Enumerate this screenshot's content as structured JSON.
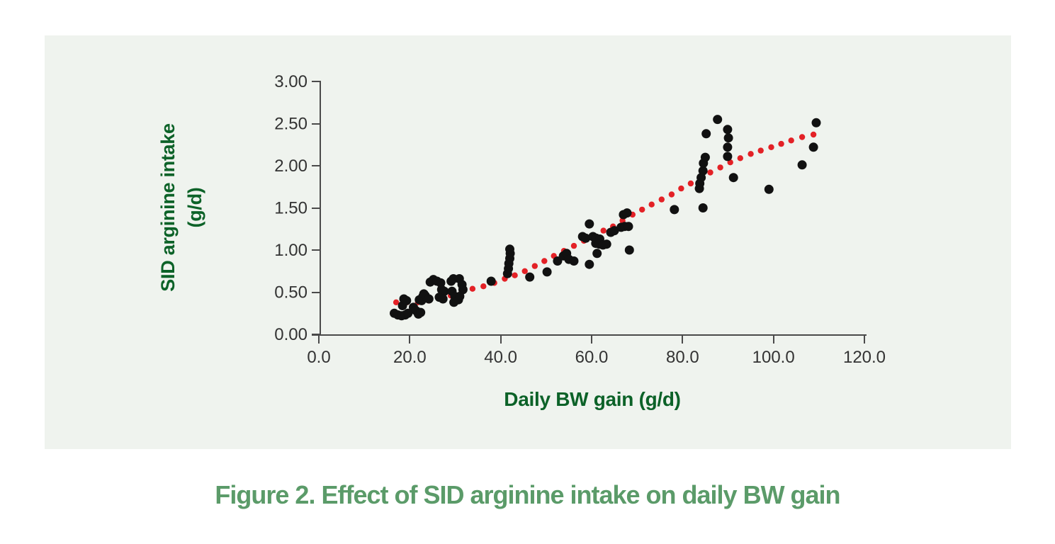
{
  "caption": "Figure 2. Effect of SID arginine intake on daily BW gain",
  "colors": {
    "panel_background": "#eff3ee",
    "axis_title_green": "#0c6228",
    "caption_green": "#5b9b69",
    "point_black": "#111111",
    "trend_red": "#e32126",
    "axis_line": "#4a4a4a",
    "tick_text": "#333333"
  },
  "chart_data": {
    "type": "scatter",
    "title": "",
    "xlabel": "Daily BW gain (g/d)",
    "ylabel": "SID arginine intake (g/d)",
    "ylabel_lines": [
      "SID arginine intake",
      "(g/d)"
    ],
    "xlim": [
      0,
      120
    ],
    "ylim": [
      0,
      3
    ],
    "x_tick_values": [
      0,
      20,
      40,
      60,
      80,
      100,
      120
    ],
    "x_tick_labels": [
      "0.0",
      "20.0",
      "40.0",
      "60.0",
      "80.0",
      "100.0",
      "120.0"
    ],
    "y_tick_values": [
      0,
      0.5,
      1.0,
      1.5,
      2.0,
      2.5,
      3.0
    ],
    "y_tick_labels": [
      "0.00",
      "0.50",
      "1.00",
      "1.50",
      "2.00",
      "2.50",
      "3.00"
    ],
    "grid": false,
    "legend": "none",
    "series": [
      {
        "name": "observations",
        "style": "scatter",
        "color": "#111111",
        "marker_radius_px": 6.5,
        "points": [
          [
            16.6,
            0.25
          ],
          [
            17.4,
            0.23
          ],
          [
            18.2,
            0.22
          ],
          [
            19.0,
            0.23
          ],
          [
            19.6,
            0.25
          ],
          [
            18.4,
            0.34
          ],
          [
            18.7,
            0.42
          ],
          [
            19.3,
            0.4
          ],
          [
            20.8,
            0.32
          ],
          [
            21.4,
            0.28
          ],
          [
            21.9,
            0.24
          ],
          [
            22.4,
            0.26
          ],
          [
            22.1,
            0.41
          ],
          [
            22.6,
            0.4
          ],
          [
            22.9,
            0.45
          ],
          [
            23.4,
            0.46
          ],
          [
            23.1,
            0.48
          ],
          [
            24.2,
            0.42
          ],
          [
            24.5,
            0.62
          ],
          [
            25.2,
            0.65
          ],
          [
            26.0,
            0.63
          ],
          [
            26.8,
            0.61
          ],
          [
            27.0,
            0.53
          ],
          [
            27.6,
            0.51
          ],
          [
            26.5,
            0.44
          ],
          [
            27.3,
            0.42
          ],
          [
            29.1,
            0.63
          ],
          [
            29.6,
            0.66
          ],
          [
            30.9,
            0.66
          ],
          [
            31.5,
            0.59
          ],
          [
            31.7,
            0.53
          ],
          [
            29.3,
            0.51
          ],
          [
            29.9,
            0.45
          ],
          [
            30.7,
            0.41
          ],
          [
            29.7,
            0.38
          ],
          [
            31.0,
            0.45
          ],
          [
            37.9,
            0.63
          ],
          [
            41.5,
            0.72
          ],
          [
            41.7,
            0.78
          ],
          [
            41.8,
            0.84
          ],
          [
            42.0,
            0.9
          ],
          [
            42.1,
            0.96
          ],
          [
            42.0,
            1.01
          ],
          [
            46.4,
            0.68
          ],
          [
            50.2,
            0.74
          ],
          [
            52.5,
            0.87
          ],
          [
            53.8,
            0.93
          ],
          [
            54.5,
            0.96
          ],
          [
            55.0,
            0.89
          ],
          [
            56.1,
            0.87
          ],
          [
            58.0,
            1.16
          ],
          [
            58.7,
            1.14
          ],
          [
            59.5,
            1.31
          ],
          [
            60.3,
            1.16
          ],
          [
            61.0,
            1.14
          ],
          [
            61.8,
            1.13
          ],
          [
            60.9,
            1.08
          ],
          [
            61.7,
            1.07
          ],
          [
            62.5,
            1.06
          ],
          [
            63.3,
            1.07
          ],
          [
            64.2,
            1.21
          ],
          [
            65.0,
            1.23
          ],
          [
            66.5,
            1.27
          ],
          [
            67.3,
            1.28
          ],
          [
            68.1,
            1.28
          ],
          [
            67.0,
            1.42
          ],
          [
            67.8,
            1.44
          ],
          [
            61.2,
            0.96
          ],
          [
            59.5,
            0.83
          ],
          [
            68.3,
            1.0
          ],
          [
            78.2,
            1.48
          ],
          [
            84.5,
            1.5
          ],
          [
            83.7,
            1.73
          ],
          [
            83.8,
            1.79
          ],
          [
            84.1,
            1.86
          ],
          [
            84.5,
            1.94
          ],
          [
            84.6,
            2.03
          ],
          [
            85.0,
            2.1
          ],
          [
            85.2,
            2.38
          ],
          [
            87.7,
            2.55
          ],
          [
            89.9,
            2.43
          ],
          [
            90.1,
            2.33
          ],
          [
            89.9,
            2.22
          ],
          [
            89.9,
            2.11
          ],
          [
            91.2,
            1.86
          ],
          [
            99.0,
            1.72
          ],
          [
            106.3,
            2.01
          ],
          [
            108.8,
            2.22
          ],
          [
            109.4,
            2.51
          ]
        ]
      },
      {
        "name": "trend",
        "style": "dotted-line",
        "color": "#e32126",
        "marker_radius_px": 4.2,
        "points": [
          [
            17.0,
            0.38
          ],
          [
            19.4,
            0.38
          ],
          [
            21.8,
            0.38
          ],
          [
            24.2,
            0.4
          ],
          [
            26.6,
            0.43
          ],
          [
            29.0,
            0.46
          ],
          [
            31.4,
            0.5
          ],
          [
            33.8,
            0.54
          ],
          [
            36.2,
            0.57
          ],
          [
            38.6,
            0.61
          ],
          [
            40.9,
            0.66
          ],
          [
            43.1,
            0.7
          ],
          [
            45.3,
            0.75
          ],
          [
            47.5,
            0.81
          ],
          [
            49.6,
            0.87
          ],
          [
            51.7,
            0.93
          ],
          [
            53.9,
            0.99
          ],
          [
            56.1,
            1.05
          ],
          [
            58.3,
            1.11
          ],
          [
            60.4,
            1.17
          ],
          [
            62.6,
            1.23
          ],
          [
            64.7,
            1.28
          ],
          [
            66.8,
            1.35
          ],
          [
            69.0,
            1.42
          ],
          [
            71.1,
            1.48
          ],
          [
            73.2,
            1.54
          ],
          [
            75.4,
            1.6
          ],
          [
            77.6,
            1.66
          ],
          [
            79.7,
            1.73
          ],
          [
            81.8,
            1.79
          ],
          [
            83.9,
            1.85
          ],
          [
            86.1,
            1.92
          ],
          [
            88.3,
            1.98
          ],
          [
            90.5,
            2.04
          ],
          [
            92.7,
            2.09
          ],
          [
            95.0,
            2.14
          ],
          [
            97.2,
            2.18
          ],
          [
            99.5,
            2.22
          ],
          [
            101.7,
            2.26
          ],
          [
            103.9,
            2.3
          ],
          [
            106.3,
            2.34
          ],
          [
            108.8,
            2.37
          ]
        ]
      }
    ]
  }
}
